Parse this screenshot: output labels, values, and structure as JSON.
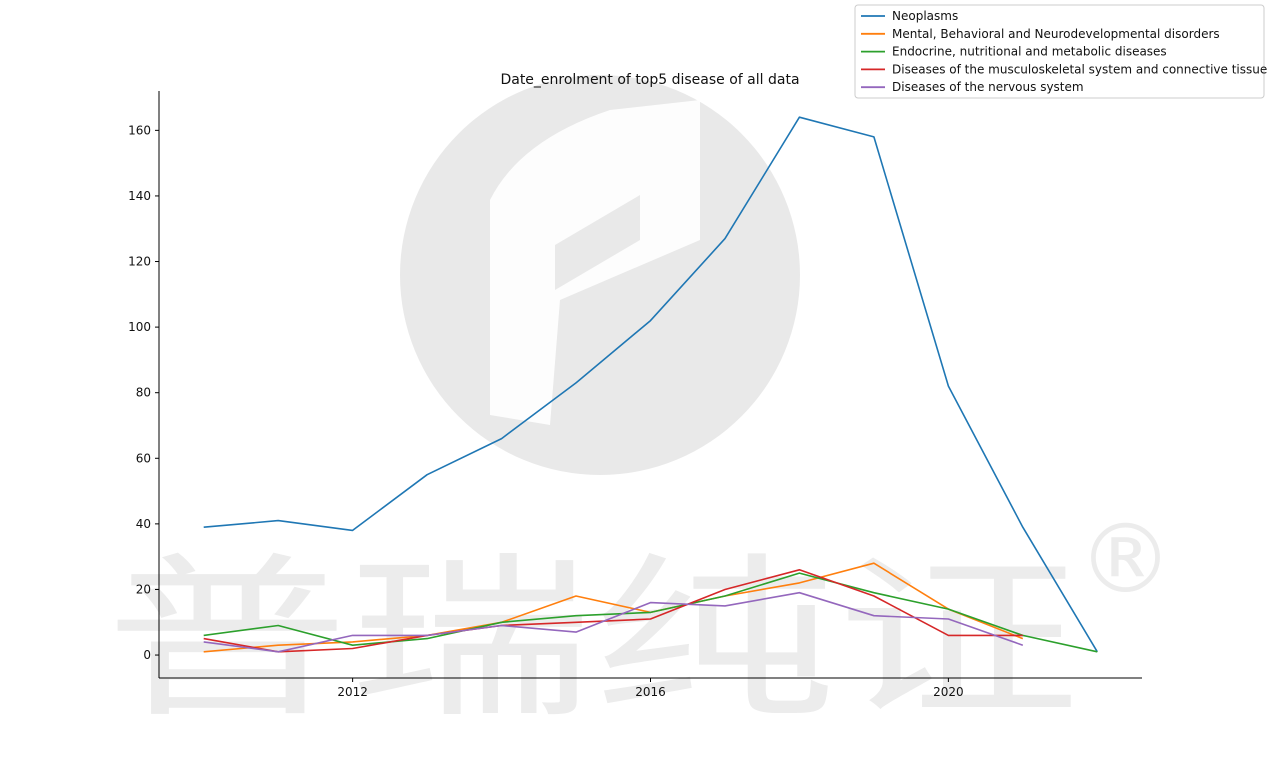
{
  "chart_data": {
    "type": "line",
    "title": "Date_enrolment of top5 disease of all data",
    "xlabel": "",
    "ylabel": "",
    "x": [
      2010,
      2011,
      2012,
      2013,
      2014,
      2015,
      2016,
      2017,
      2018,
      2019,
      2020,
      2021,
      2022
    ],
    "xlim": [
      2009.4,
      2022.6
    ],
    "ylim": [
      -7,
      172
    ],
    "xticks": [
      2012,
      2016,
      2020
    ],
    "yticks": [
      0,
      20,
      40,
      60,
      80,
      100,
      120,
      140,
      160
    ],
    "grid": false,
    "legend_position": "top-right",
    "series": [
      {
        "name": "Neoplasms",
        "color": "#1f77b4",
        "values": [
          39,
          41,
          38,
          55,
          66,
          83,
          102,
          127,
          164,
          158,
          82,
          39,
          1
        ]
      },
      {
        "name": "Mental, Behavioral and Neurodevelopmental disorders",
        "color": "#ff7f0e",
        "values": [
          1,
          3,
          4,
          6,
          10,
          18,
          13,
          18,
          22,
          28,
          14,
          5,
          null
        ]
      },
      {
        "name": "Endocrine, nutritional and metabolic diseases",
        "color": "#2ca02c",
        "values": [
          6,
          9,
          3,
          5,
          10,
          12,
          13,
          18,
          25,
          19,
          14,
          6,
          1
        ]
      },
      {
        "name": "Diseases of the musculoskeletal system and connective tissue",
        "color": "#d62728",
        "values": [
          5,
          1,
          2,
          6,
          9,
          10,
          11,
          20,
          26,
          18,
          6,
          6,
          null
        ]
      },
      {
        "name": "Diseases of the nervous system",
        "color": "#9467bd",
        "values": [
          4,
          1,
          6,
          6,
          9,
          7,
          16,
          15,
          19,
          12,
          11,
          3,
          null
        ]
      }
    ]
  },
  "watermark": {
    "text": "普瑞纯证",
    "symbol": "®"
  }
}
